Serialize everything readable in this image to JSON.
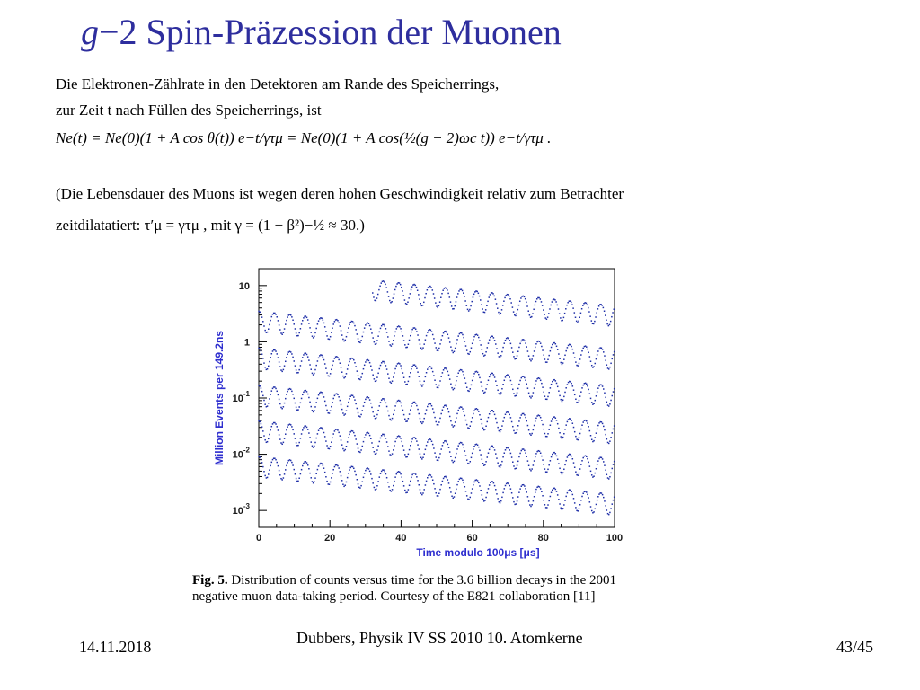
{
  "slide": {
    "title_g": "g",
    "title_rest": "−2 Spin-Präzession der Muonen",
    "line1": "Die Elektronen-Zählrate in den Detektoren am Rande des Speicherrings,",
    "line2": "zur Zeit t  nach Füllen des Speicherrings, ist",
    "formula": "Ne(t) = Ne(0)(1 + A cos θ(t)) e−t/γτμ = Ne(0)(1 + A cos(½(g − 2)ωc t)) e−t/γτμ .",
    "line3": "(Die Lebensdauer des Muons ist wegen deren hohen Geschwindigkeit relativ zum Betrachter",
    "line4": "zeitdilatatiert:  τ′μ = γτμ ,  mit  γ = (1 − β²)−½ ≈ 30.)",
    "caption_label": "Fig. 5.",
    "caption_text": " Distribution of counts versus time for the 3.6 billion decays in the 2001\nnegative muon data-taking period. Courtesy of the E821 collaboration [11]"
  },
  "footer": {
    "date": "14.11.2018",
    "center": "Dubbers, Physik IV SS 2010 10. Atomkerne",
    "page": "43/45"
  },
  "chart_data": {
    "type": "scatter",
    "xlabel": "Time modulo 100μs [μs]",
    "ylabel": "Million Events per 149.2ns",
    "xlim": [
      0,
      100
    ],
    "ylim": [
      0.0005,
      20
    ],
    "y_scale": "log",
    "x_ticks": [
      0,
      20,
      40,
      60,
      80,
      100
    ],
    "y_ticks": [
      {
        "value": 10,
        "base": "10",
        "exp": ""
      },
      {
        "value": 1,
        "base": "1",
        "exp": ""
      },
      {
        "value": 0.1,
        "base": "10",
        "exp": "-1"
      },
      {
        "value": 0.01,
        "base": "10",
        "exp": "-2"
      },
      {
        "value": 0.001,
        "base": "10",
        "exp": "-3"
      }
    ],
    "oscillation_period_us": 4.37,
    "modulation_amplitude": 0.4,
    "lifetime_us": 64.4,
    "series": [
      {
        "start_time_us": 32,
        "end_time_us": 100,
        "initial_value": 9.0
      },
      {
        "start_time_us": 0,
        "end_time_us": 100,
        "initial_value": 2.5
      },
      {
        "start_time_us": 0,
        "end_time_us": 100,
        "initial_value": 0.55
      },
      {
        "start_time_us": 0,
        "end_time_us": 100,
        "initial_value": 0.12
      },
      {
        "start_time_us": 0,
        "end_time_us": 100,
        "initial_value": 0.028
      },
      {
        "start_time_us": 0,
        "end_time_us": 100,
        "initial_value": 0.0065
      }
    ],
    "grid": false,
    "marker_color": "#1f2fa8"
  }
}
